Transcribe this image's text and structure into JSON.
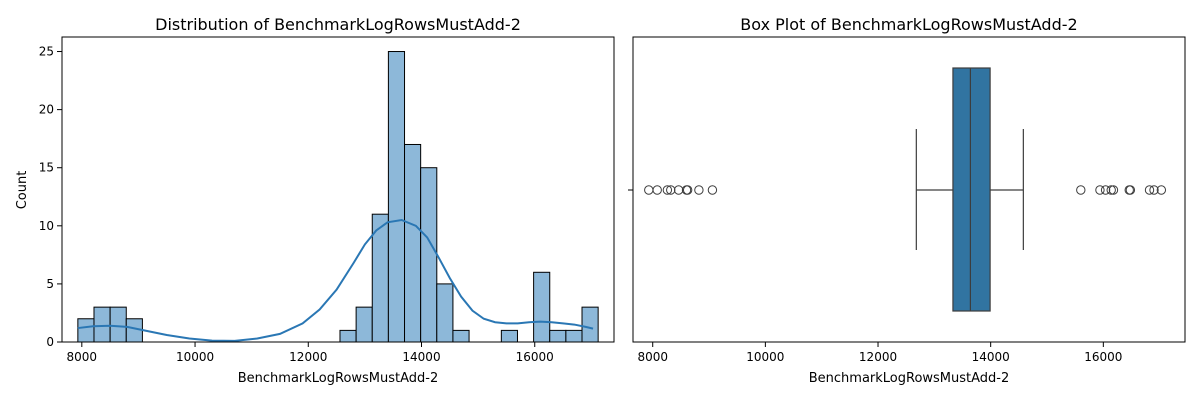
{
  "chart_data": [
    {
      "type": "bar",
      "title": "Distribution of BenchmarkLogRowsMustAdd-2",
      "xlabel": "BenchmarkLogRowsMustAdd-2",
      "ylabel": "Count",
      "xlim": [
        7650,
        17400
      ],
      "ylim": [
        0,
        26.25
      ],
      "xticks": [
        8000,
        10000,
        12000,
        14000,
        16000
      ],
      "yticks": [
        0,
        5,
        10,
        15,
        20,
        25
      ],
      "bin_width": 285,
      "bins": [
        {
          "start": 7930,
          "count": 2
        },
        {
          "start": 8215,
          "count": 3
        },
        {
          "start": 8500,
          "count": 3
        },
        {
          "start": 8785,
          "count": 2
        },
        {
          "start": 12560,
          "count": 1
        },
        {
          "start": 12845,
          "count": 3
        },
        {
          "start": 13130,
          "count": 11
        },
        {
          "start": 13415,
          "count": 25
        },
        {
          "start": 13700,
          "count": 17
        },
        {
          "start": 13985,
          "count": 15
        },
        {
          "start": 14270,
          "count": 5
        },
        {
          "start": 14555,
          "count": 1
        },
        {
          "start": 15410,
          "count": 1
        },
        {
          "start": 15980,
          "count": 6
        },
        {
          "start": 16265,
          "count": 1
        },
        {
          "start": 16550,
          "count": 1
        },
        {
          "start": 16835,
          "count": 3
        }
      ],
      "kde": {
        "x": [
          7930,
          8200,
          8500,
          8800,
          9100,
          9500,
          9900,
          10300,
          10700,
          11100,
          11500,
          11900,
          12200,
          12500,
          12800,
          13000,
          13200,
          13400,
          13650,
          13900,
          14100,
          14300,
          14500,
          14700,
          14900,
          15100,
          15300,
          15500,
          15700,
          15900,
          16100,
          16300,
          16500,
          16700,
          16900,
          17030
        ],
        "y": [
          1.2,
          1.35,
          1.4,
          1.3,
          1.0,
          0.6,
          0.3,
          0.12,
          0.1,
          0.3,
          0.7,
          1.6,
          2.8,
          4.5,
          6.8,
          8.4,
          9.6,
          10.3,
          10.5,
          10.0,
          9.0,
          7.3,
          5.5,
          3.9,
          2.7,
          2.0,
          1.7,
          1.6,
          1.6,
          1.7,
          1.75,
          1.7,
          1.6,
          1.5,
          1.3,
          1.15
        ]
      },
      "colors": {
        "bar_fill": "#8db8d9",
        "kde_line": "#2a77b4",
        "edge": "#000000"
      },
      "grid": false
    },
    {
      "type": "box",
      "title": "Box Plot of BenchmarkLogRowsMustAdd-2",
      "xlabel": "BenchmarkLogRowsMustAdd-2",
      "xlim": [
        7650,
        17450
      ],
      "xticks": [
        8000,
        10000,
        12000,
        14000,
        16000
      ],
      "box": {
        "whisker_low": 12680,
        "q1": 13330,
        "median": 13640,
        "q3": 13990,
        "whisker_high": 14580
      },
      "outliers": [
        7930,
        8080,
        8260,
        8320,
        8460,
        8600,
        8620,
        8820,
        9060,
        15600,
        15940,
        16040,
        16140,
        16180,
        16460,
        16480,
        16820,
        16900,
        17030
      ],
      "colors": {
        "box_fill": "#3174a1",
        "line": "#3d3d3d"
      },
      "grid": false
    }
  ]
}
